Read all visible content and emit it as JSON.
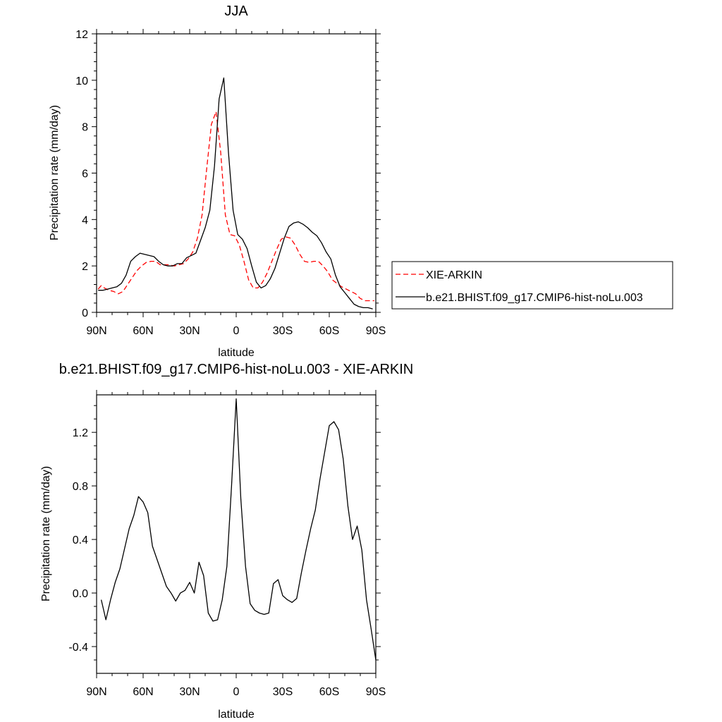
{
  "chart_data": [
    {
      "type": "line",
      "title": "JJA",
      "xlabel": "latitude",
      "ylabel": "Precipitation rate (mm/day)",
      "xlim": [
        90,
        -90
      ],
      "ylim": [
        0,
        12
      ],
      "x_ticks": [
        90,
        60,
        30,
        0,
        -30,
        -60,
        -90
      ],
      "x_tick_labels": [
        "90N",
        "60N",
        "30N",
        "0",
        "30S",
        "60S",
        "90S"
      ],
      "y_ticks": [
        0,
        2,
        4,
        6,
        8,
        10,
        12
      ],
      "y_tick_labels": [
        "0",
        "2",
        "4",
        "6",
        "8",
        "10",
        "12"
      ],
      "legend_position": "outside-right",
      "series": [
        {
          "name": "XIE-ARKIN",
          "style": "dashed",
          "color": "#ff0000",
          "x": [
            89,
            87,
            85,
            82,
            79,
            76,
            73,
            70,
            67,
            64,
            61,
            58,
            55,
            52,
            49,
            46,
            43,
            40,
            37,
            34,
            31,
            28,
            25,
            22,
            19,
            16,
            13,
            10,
            7,
            4,
            1,
            -2,
            -5,
            -8,
            -11,
            -14,
            -17,
            -20,
            -23,
            -26,
            -29,
            -32,
            -35,
            -38,
            -41,
            -44,
            -47,
            -50,
            -53,
            -56,
            -59,
            -62,
            -65,
            -68,
            -71,
            -74,
            -77,
            -80,
            -83,
            -86,
            -89
          ],
          "y": [
            1.0,
            1.15,
            1.05,
            0.95,
            0.9,
            0.8,
            0.9,
            1.2,
            1.5,
            1.8,
            2.0,
            2.15,
            2.2,
            2.2,
            2.05,
            2.05,
            2.05,
            2.0,
            2.05,
            2.1,
            2.3,
            2.6,
            3.2,
            4.2,
            6.2,
            8.1,
            8.65,
            6.9,
            4.2,
            3.35,
            3.3,
            2.9,
            2.2,
            1.4,
            1.05,
            1.05,
            1.3,
            1.7,
            2.2,
            2.7,
            3.15,
            3.25,
            3.2,
            2.9,
            2.5,
            2.2,
            2.15,
            2.2,
            2.2,
            2.0,
            1.75,
            1.4,
            1.25,
            1.1,
            1.0,
            0.9,
            0.8,
            0.6,
            0.5,
            0.5,
            0.5
          ]
        },
        {
          "name": "b.e21.BHIST.f09_g17.CMIP6-hist-noLu.003",
          "style": "solid",
          "color": "#000000",
          "x": [
            89,
            86,
            83,
            80,
            77,
            74,
            71,
            68,
            65,
            62,
            59,
            56,
            53,
            50,
            47,
            44,
            41,
            38,
            35,
            32,
            29,
            26,
            23,
            20,
            17,
            14,
            11,
            8,
            5,
            2,
            -1,
            -4,
            -7,
            -10,
            -13,
            -16,
            -19,
            -22,
            -25,
            -28,
            -31,
            -34,
            -37,
            -40,
            -43,
            -46,
            -49,
            -52,
            -55,
            -58,
            -61,
            -64,
            -67,
            -70,
            -73,
            -76,
            -79,
            -82,
            -85,
            -88
          ],
          "y": [
            0.95,
            0.95,
            1.0,
            1.05,
            1.1,
            1.25,
            1.6,
            2.2,
            2.4,
            2.55,
            2.5,
            2.45,
            2.4,
            2.2,
            2.05,
            2.0,
            2.0,
            2.1,
            2.1,
            2.35,
            2.45,
            2.55,
            3.1,
            3.65,
            4.4,
            6.3,
            9.2,
            10.1,
            6.9,
            4.4,
            3.35,
            3.15,
            2.75,
            2.0,
            1.3,
            1.05,
            1.15,
            1.45,
            1.9,
            2.55,
            3.2,
            3.7,
            3.85,
            3.9,
            3.8,
            3.65,
            3.45,
            3.3,
            3.0,
            2.6,
            2.3,
            1.6,
            1.1,
            0.85,
            0.6,
            0.35,
            0.25,
            0.2,
            0.2,
            0.15
          ]
        }
      ]
    },
    {
      "type": "line",
      "title": "b.e21.BHIST.f09_g17.CMIP6-hist-noLu.003 - XIE-ARKIN",
      "xlabel": "latitude",
      "ylabel": "Precipitation rate (mm/day)",
      "xlim": [
        90,
        -90
      ],
      "ylim": [
        -0.6,
        1.48
      ],
      "x_ticks": [
        90,
        60,
        30,
        0,
        -30,
        -60,
        -90
      ],
      "x_tick_labels": [
        "90N",
        "60N",
        "30N",
        "0",
        "30S",
        "60S",
        "90S"
      ],
      "y_ticks": [
        -0.4,
        0.0,
        0.4,
        0.8,
        1.2
      ],
      "y_tick_labels": [
        "-0.4",
        "0.0",
        "0.4",
        "0.8",
        "1.2"
      ],
      "series": [
        {
          "style": "solid",
          "color": "#000000",
          "x": [
            87,
            84,
            81,
            78,
            75,
            72,
            69,
            66,
            63,
            60,
            57,
            54,
            51,
            48,
            45,
            42,
            39,
            36,
            33,
            30,
            27,
            24,
            21,
            18,
            15,
            12,
            9,
            6,
            3,
            0,
            -3,
            -6,
            -9,
            -12,
            -15,
            -18,
            -21,
            -24,
            -27,
            -30,
            -33,
            -36,
            -39,
            -42,
            -45,
            -48,
            -51,
            -54,
            -57,
            -60,
            -63,
            -66,
            -69,
            -72,
            -75,
            -78,
            -81,
            -84,
            -87,
            -90
          ],
          "y": [
            -0.05,
            -0.2,
            -0.05,
            0.08,
            0.18,
            0.33,
            0.48,
            0.58,
            0.72,
            0.68,
            0.6,
            0.35,
            0.25,
            0.15,
            0.05,
            0.0,
            -0.06,
            0.0,
            0.02,
            0.08,
            0.0,
            0.23,
            0.13,
            -0.15,
            -0.21,
            -0.2,
            -0.05,
            0.2,
            0.8,
            1.45,
            0.7,
            0.2,
            -0.08,
            -0.13,
            -0.15,
            -0.16,
            -0.15,
            0.07,
            0.1,
            -0.02,
            -0.05,
            -0.07,
            -0.04,
            0.15,
            0.32,
            0.48,
            0.62,
            0.85,
            1.05,
            1.25,
            1.28,
            1.22,
            1.0,
            0.65,
            0.4,
            0.5,
            0.32,
            -0.05,
            -0.27,
            -0.5
          ]
        }
      ]
    }
  ]
}
